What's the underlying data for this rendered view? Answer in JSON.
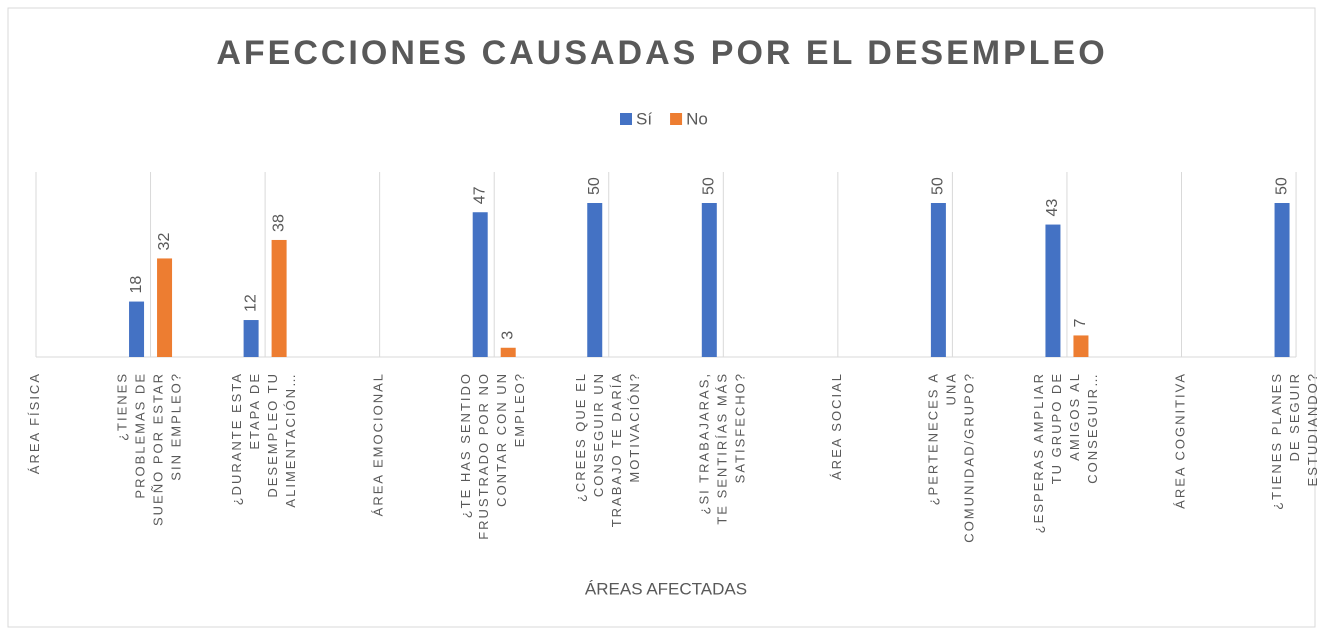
{
  "chart_data": {
    "type": "bar",
    "title": "AFECCIONES CAUSADAS POR EL DESEMPLEO",
    "x_label": "ÁREAS AFECTADAS",
    "categories": [
      "ÁREA FÍSICA",
      "¿TIENES PROBLEMAS DE SUEÑO POR ESTAR SIN EMPLEO?",
      "¿DURANTE ESTA ETAPA DE DESEMPLEO TU ALIMENTACIÓN…",
      "ÁREA EMOCIONAL",
      "¿TE HAS SENTIDO FRUSTRADO POR NO CONTAR CON UN EMPLEO?",
      "¿CREES QUE EL CONSEGUIR UN TRABAJO TE DARÍA MOTIVACIÓN?",
      "¿SI TRABAJARAS, TE SENTIRÍAS MÁS SATISFECHO?",
      "ÁREA SOCIAL",
      "¿PERTENECES A UNA COMUNIDAD/GRUPO?",
      "¿ESPERAS AMPLIAR TU GRUPO DE AMIGOS AL CONSEGUIR…",
      "ÁREA COGNITIVA",
      "¿TIENES PLANES DE SEGUIR ESTUDIANDO?"
    ],
    "series": [
      {
        "name": "Sí",
        "color": "#4472c4",
        "values": [
          null,
          18,
          12,
          null,
          47,
          50,
          50,
          null,
          50,
          43,
          null,
          50
        ]
      },
      {
        "name": "No",
        "color": "#ed7d31",
        "values": [
          null,
          32,
          38,
          null,
          3,
          null,
          null,
          null,
          null,
          7,
          null,
          null
        ]
      }
    ],
    "ylim": [
      0,
      50
    ],
    "legend": "top",
    "grid": true
  }
}
